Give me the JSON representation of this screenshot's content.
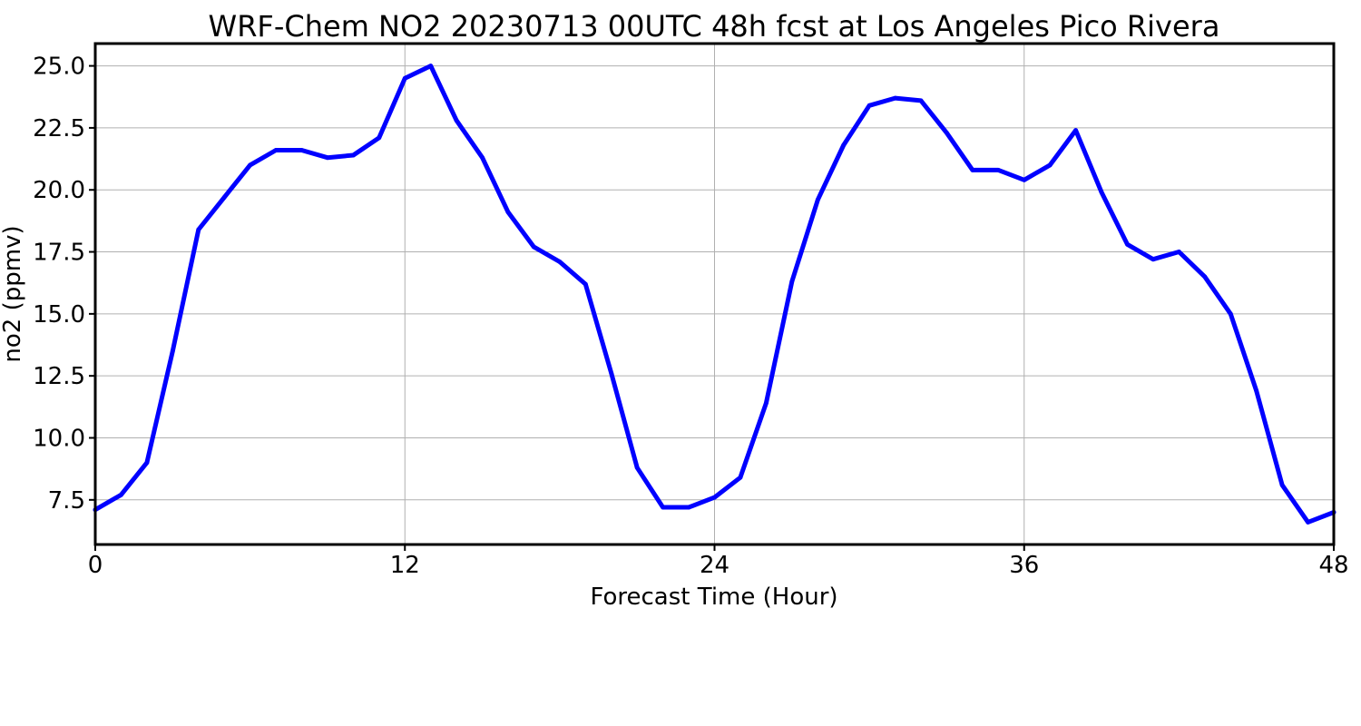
{
  "chart_data": {
    "type": "line",
    "title": "WRF-Chem NO2  20230713 00UTC 48h fcst at Los Angeles Pico Rivera",
    "xlabel": "Forecast Time (Hour)",
    "ylabel": "no2  (ppmv)",
    "xlim": [
      0,
      48
    ],
    "ylim": [
      5.7,
      25.9
    ],
    "xticks": [
      0,
      12,
      24,
      36,
      48
    ],
    "xtick_labels": [
      "0",
      "12",
      "24",
      "36",
      "48"
    ],
    "yticks": [
      7.5,
      10.0,
      12.5,
      15.0,
      17.5,
      20.0,
      22.5,
      25.0
    ],
    "ytick_labels": [
      "7.5",
      "10.0",
      "12.5",
      "15.0",
      "17.5",
      "20.0",
      "22.5",
      "25.0"
    ],
    "grid": true,
    "line_color": "#0000ff",
    "x": [
      0,
      1,
      2,
      3,
      4,
      5,
      6,
      7,
      8,
      9,
      10,
      11,
      12,
      13,
      14,
      15,
      16,
      17,
      18,
      19,
      20,
      21,
      22,
      23,
      24,
      25,
      26,
      27,
      28,
      29,
      30,
      31,
      32,
      33,
      34,
      35,
      36,
      37,
      38,
      39,
      40,
      41,
      42,
      43,
      44,
      45,
      46,
      47,
      48
    ],
    "values": [
      7.1,
      7.7,
      9.0,
      13.5,
      18.4,
      19.7,
      21.0,
      21.6,
      21.6,
      21.3,
      21.4,
      22.1,
      24.5,
      25.0,
      22.8,
      21.3,
      19.1,
      17.7,
      17.1,
      16.2,
      12.6,
      8.8,
      7.2,
      7.2,
      7.6,
      8.4,
      11.4,
      16.3,
      19.6,
      21.8,
      23.4,
      23.7,
      23.6,
      22.3,
      20.8,
      20.8,
      20.4,
      21.0,
      22.4,
      19.9,
      17.8,
      17.2,
      17.5,
      16.5,
      15.0,
      11.9,
      8.1,
      6.6,
      7.0
    ]
  }
}
